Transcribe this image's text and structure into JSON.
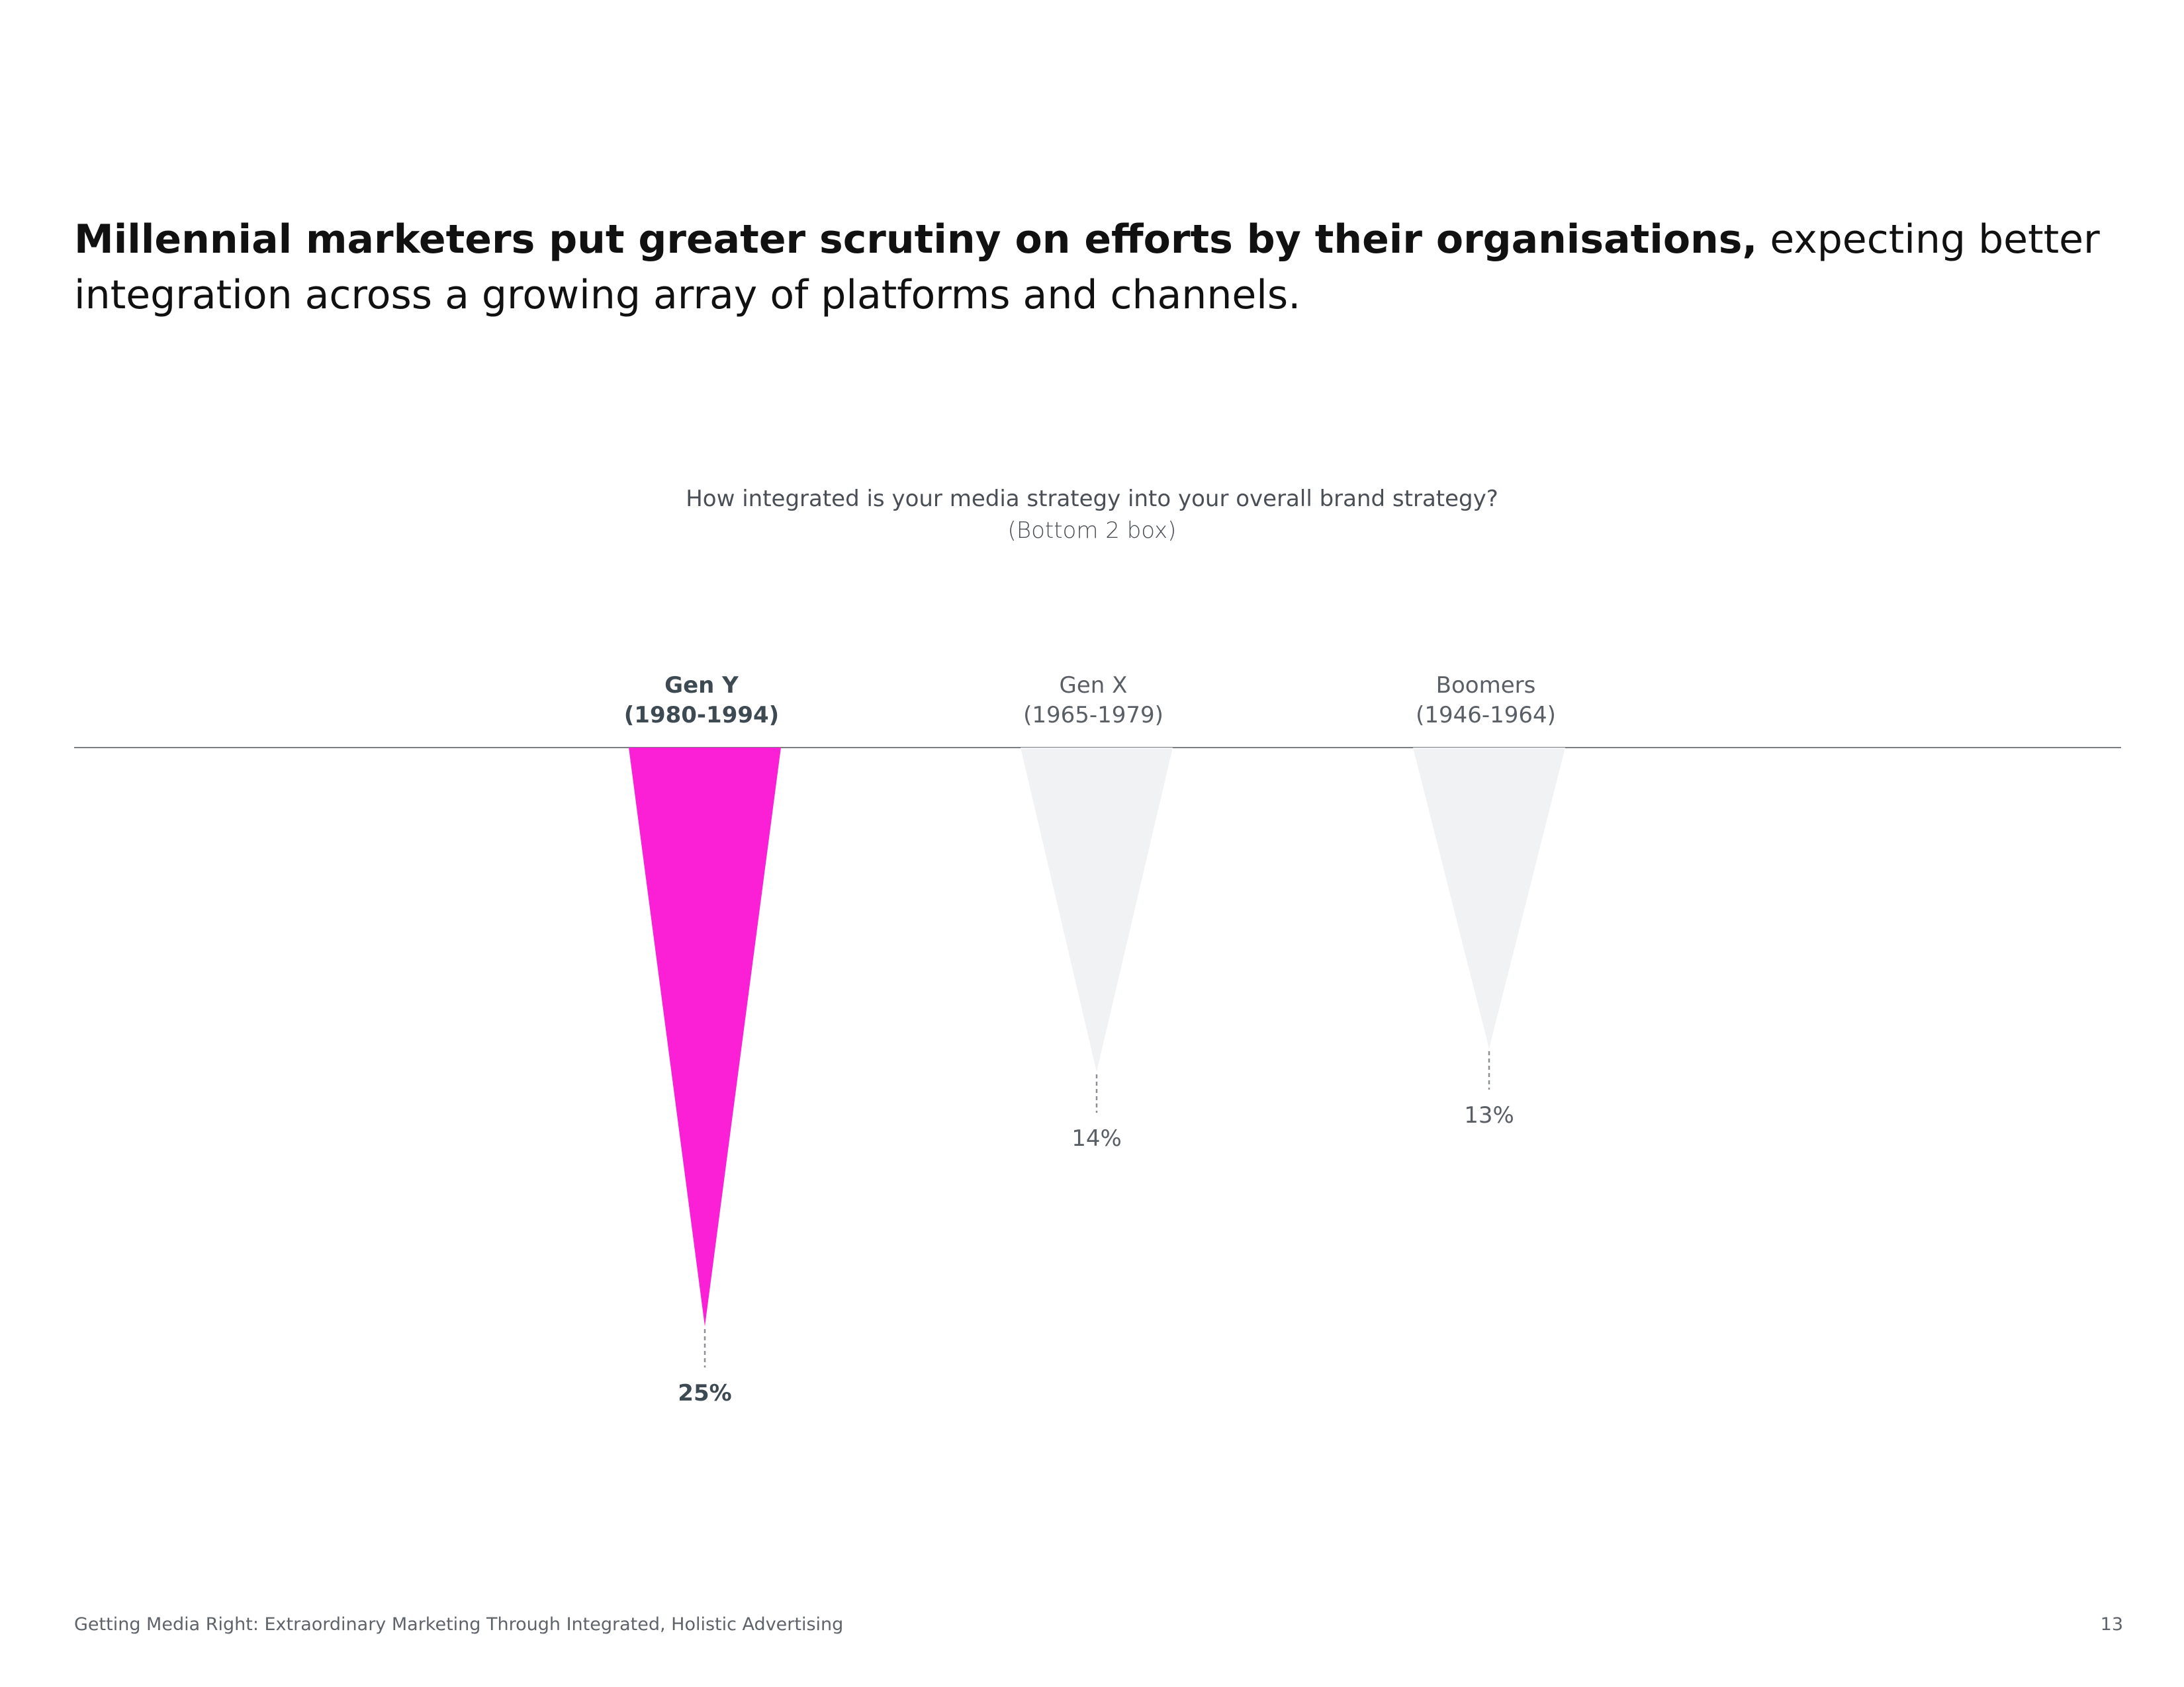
{
  "headline": {
    "bold": "Millennial marketers put greater scrutiny on efforts by their organisations,",
    "regular": " expecting better integration across a growing array of platforms and channels."
  },
  "chart_data": {
    "type": "bar",
    "title": "How integrated is your media strategy into your overall brand strategy?",
    "subtitle": "(Bottom 2 box)",
    "categories": [
      {
        "name": "Gen Y",
        "years": "(1980-1994)",
        "emphasized": true
      },
      {
        "name": "Gen X",
        "years": "(1965-1979)",
        "emphasized": false
      },
      {
        "name": "Boomers",
        "years": "(1946-1964)",
        "emphasized": false
      }
    ],
    "values": [
      25,
      14,
      13
    ],
    "value_labels": [
      "25%",
      "14%",
      "13%"
    ],
    "unit": "%",
    "orientation": "downward-triangles",
    "colors": {
      "highlight": "#fb1fd6",
      "muted": "#f1f2f3",
      "baseline": "#7a7f85",
      "leader": "#8a8f95",
      "label_emphasis": "#3d4a52",
      "label_muted": "#5a5f65"
    }
  },
  "footer": {
    "source": "Getting Media Right: Extraordinary Marketing Through Integrated, Holistic Advertising",
    "page": "13"
  }
}
